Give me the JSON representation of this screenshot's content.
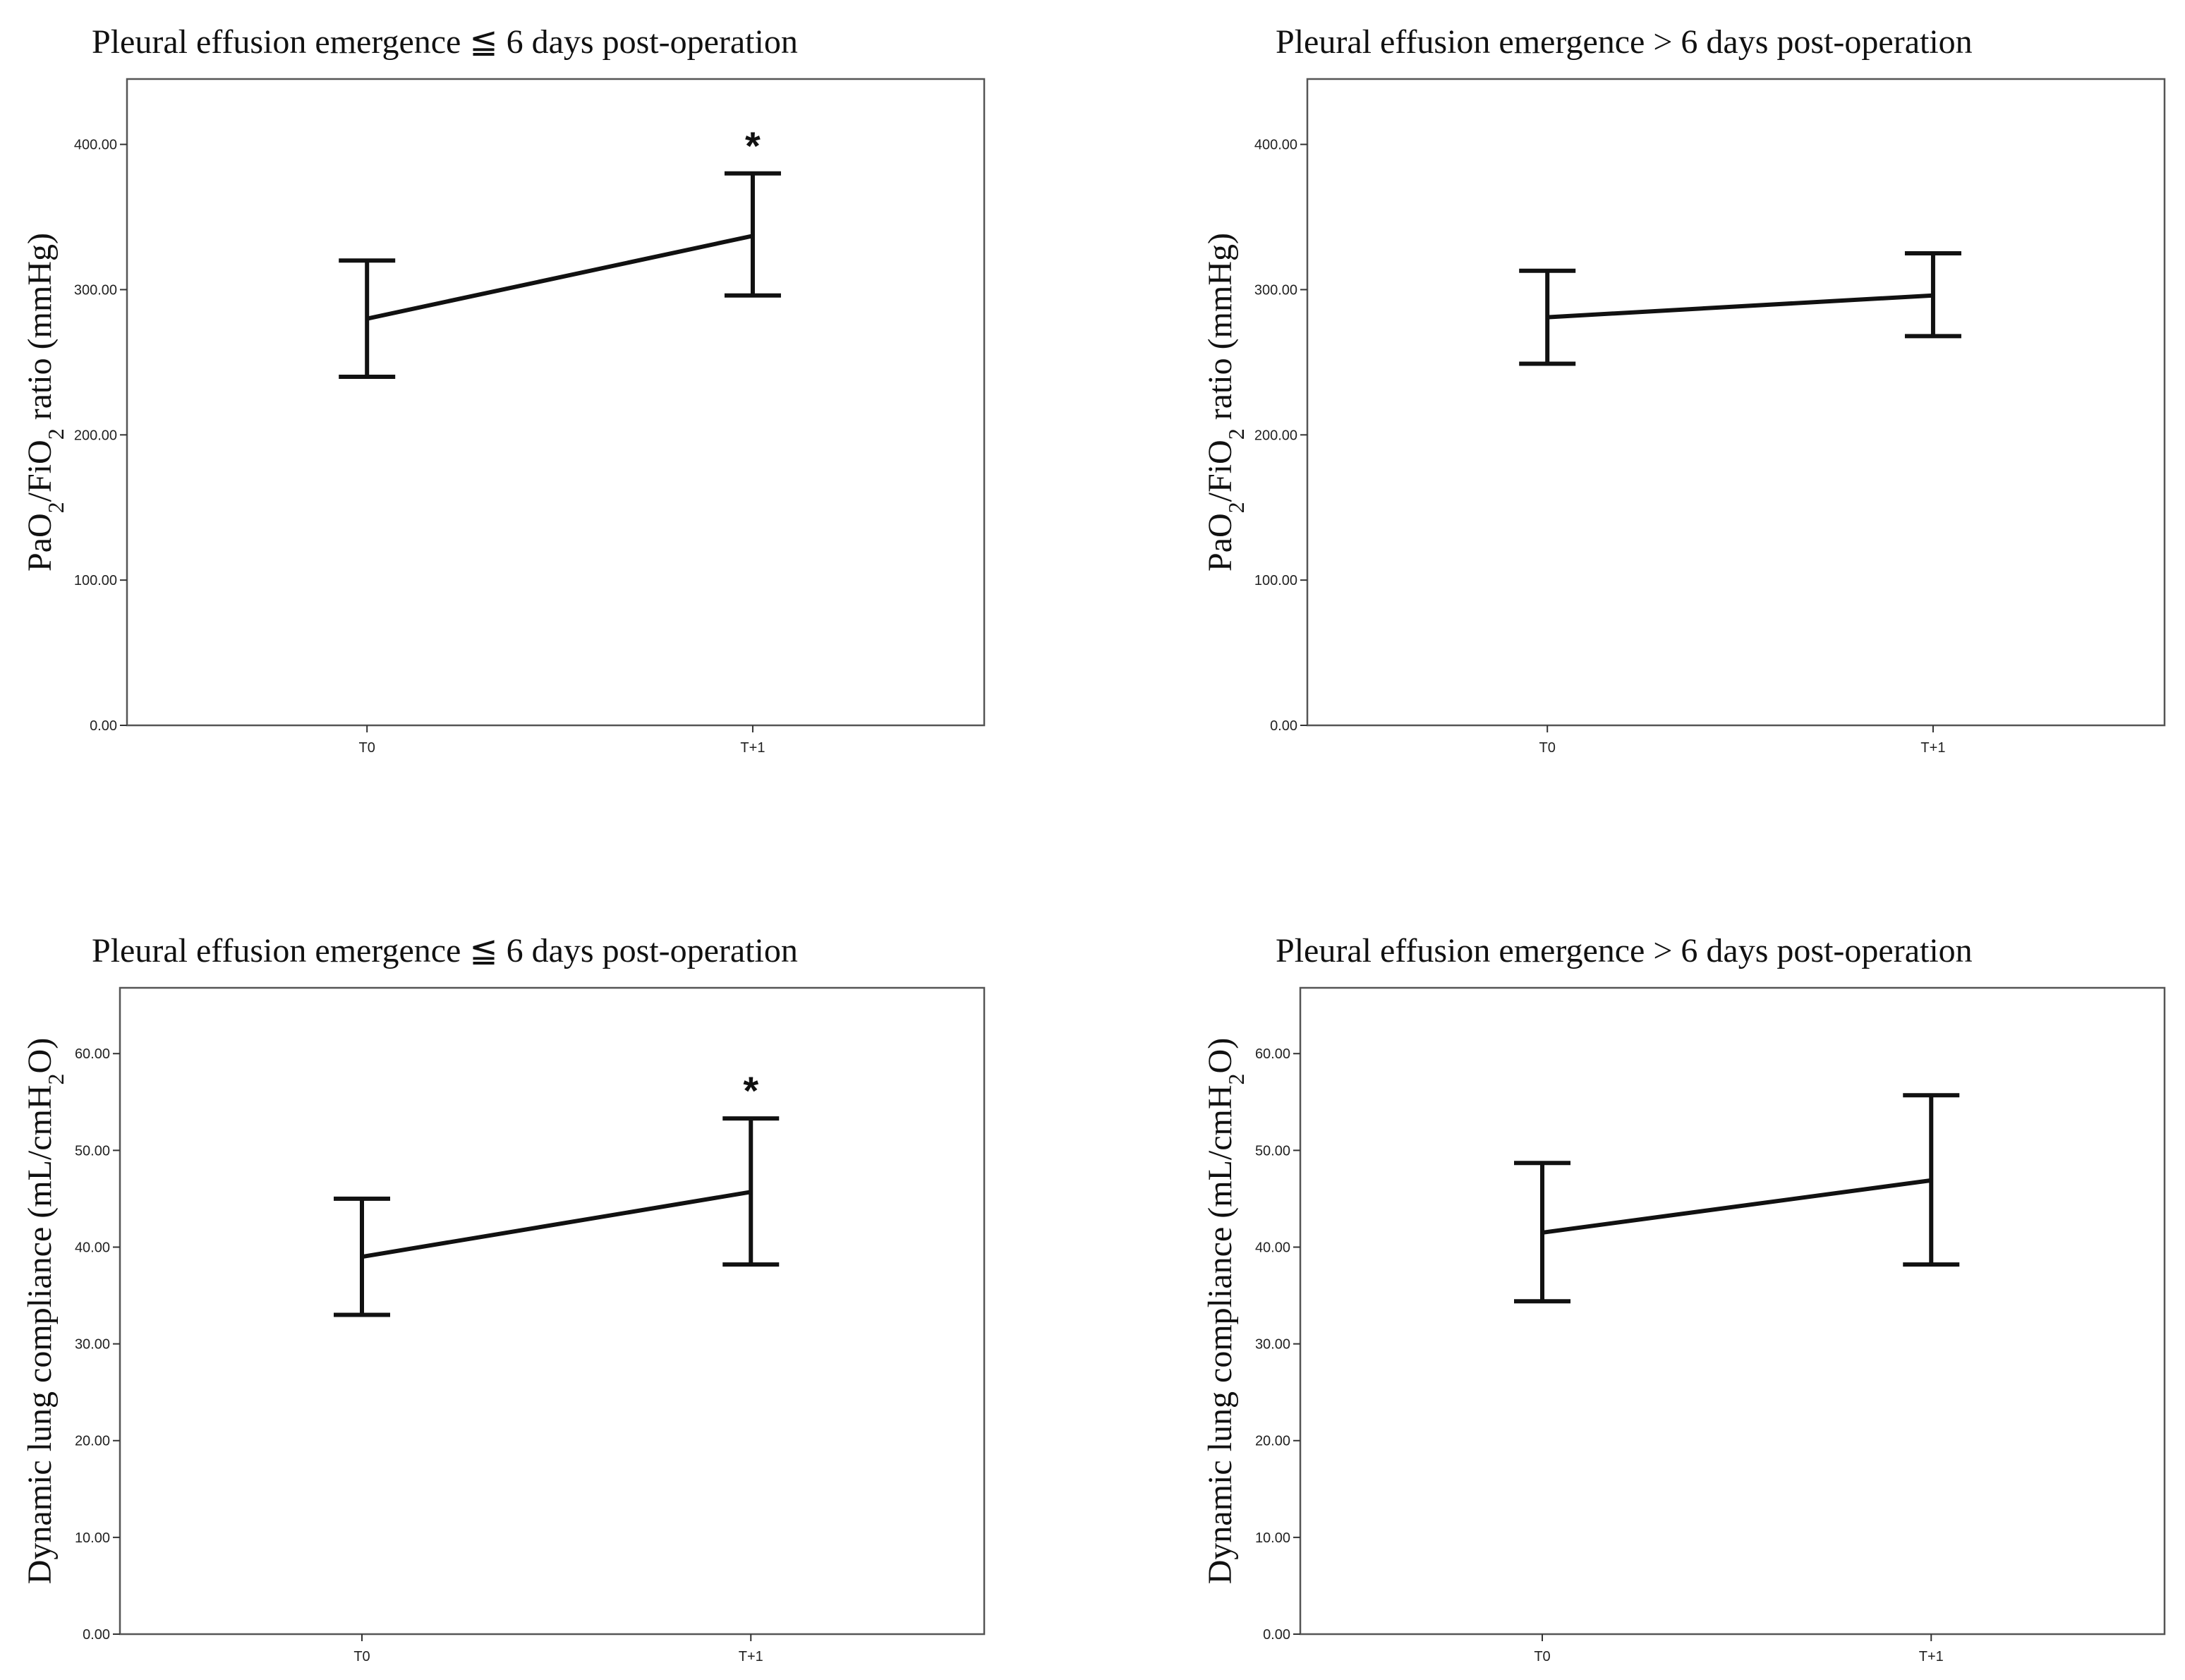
{
  "chart_data": [
    {
      "type": "line",
      "title": "Pleural effusion emergence ≦ 6 days post-operation",
      "ylabel_main": "PaO",
      "ylabel_sub1": "2",
      "ylabel_mid": "/FiO",
      "ylabel_sub2": "2",
      "ylabel_tail": " ratio (mmHg)",
      "categories": [
        "T0",
        "T+1"
      ],
      "values": [
        280,
        337
      ],
      "error_low": [
        240,
        296
      ],
      "error_high": [
        320,
        380
      ],
      "significance": [
        "",
        "*"
      ],
      "yticks": [
        "0.00",
        "100.00",
        "200.00",
        "300.00",
        "400.00"
      ],
      "ylim": [
        0,
        445
      ]
    },
    {
      "type": "line",
      "title": "Pleural effusion emergence > 6 days post-operation",
      "ylabel_main": "PaO",
      "ylabel_sub1": "2",
      "ylabel_mid": "/FiO",
      "ylabel_sub2": "2",
      "ylabel_tail": " ratio (mmHg)",
      "categories": [
        "T0",
        "T+1"
      ],
      "values": [
        281,
        296
      ],
      "error_low": [
        249,
        268
      ],
      "error_high": [
        313,
        325
      ],
      "significance": [
        "",
        ""
      ],
      "yticks": [
        "0.00",
        "100.00",
        "200.00",
        "300.00",
        "400.00"
      ],
      "ylim": [
        0,
        445
      ]
    },
    {
      "type": "line",
      "title": "Pleural effusion emergence ≦ 6 days post-operation",
      "ylabel_main": "Dynamic lung compliance (mL/cmH",
      "ylabel_sub1": "2",
      "ylabel_mid": "O)",
      "ylabel_sub2": "",
      "ylabel_tail": "",
      "categories": [
        "T0",
        "T+1"
      ],
      "values": [
        39,
        45.7
      ],
      "error_low": [
        33,
        38.2
      ],
      "error_high": [
        45,
        53.3
      ],
      "significance": [
        "",
        "*"
      ],
      "yticks": [
        "0.00",
        "10.00",
        "20.00",
        "30.00",
        "40.00",
        "50.00",
        "60.00"
      ],
      "ylim": [
        0,
        66.8
      ]
    },
    {
      "type": "line",
      "title": "Pleural effusion emergence > 6 days post-operation",
      "ylabel_main": "Dynamic lung compliance (mL/cmH",
      "ylabel_sub1": "2",
      "ylabel_mid": "O)",
      "ylabel_sub2": "",
      "ylabel_tail": "",
      "categories": [
        "T0",
        "T+1"
      ],
      "values": [
        41.5,
        46.9
      ],
      "error_low": [
        34.4,
        38.2
      ],
      "error_high": [
        48.7,
        55.7
      ],
      "significance": [
        "",
        ""
      ],
      "yticks": [
        "0.00",
        "10.00",
        "20.00",
        "30.00",
        "40.00",
        "50.00",
        "60.00"
      ],
      "ylim": [
        0,
        66.8
      ]
    }
  ]
}
